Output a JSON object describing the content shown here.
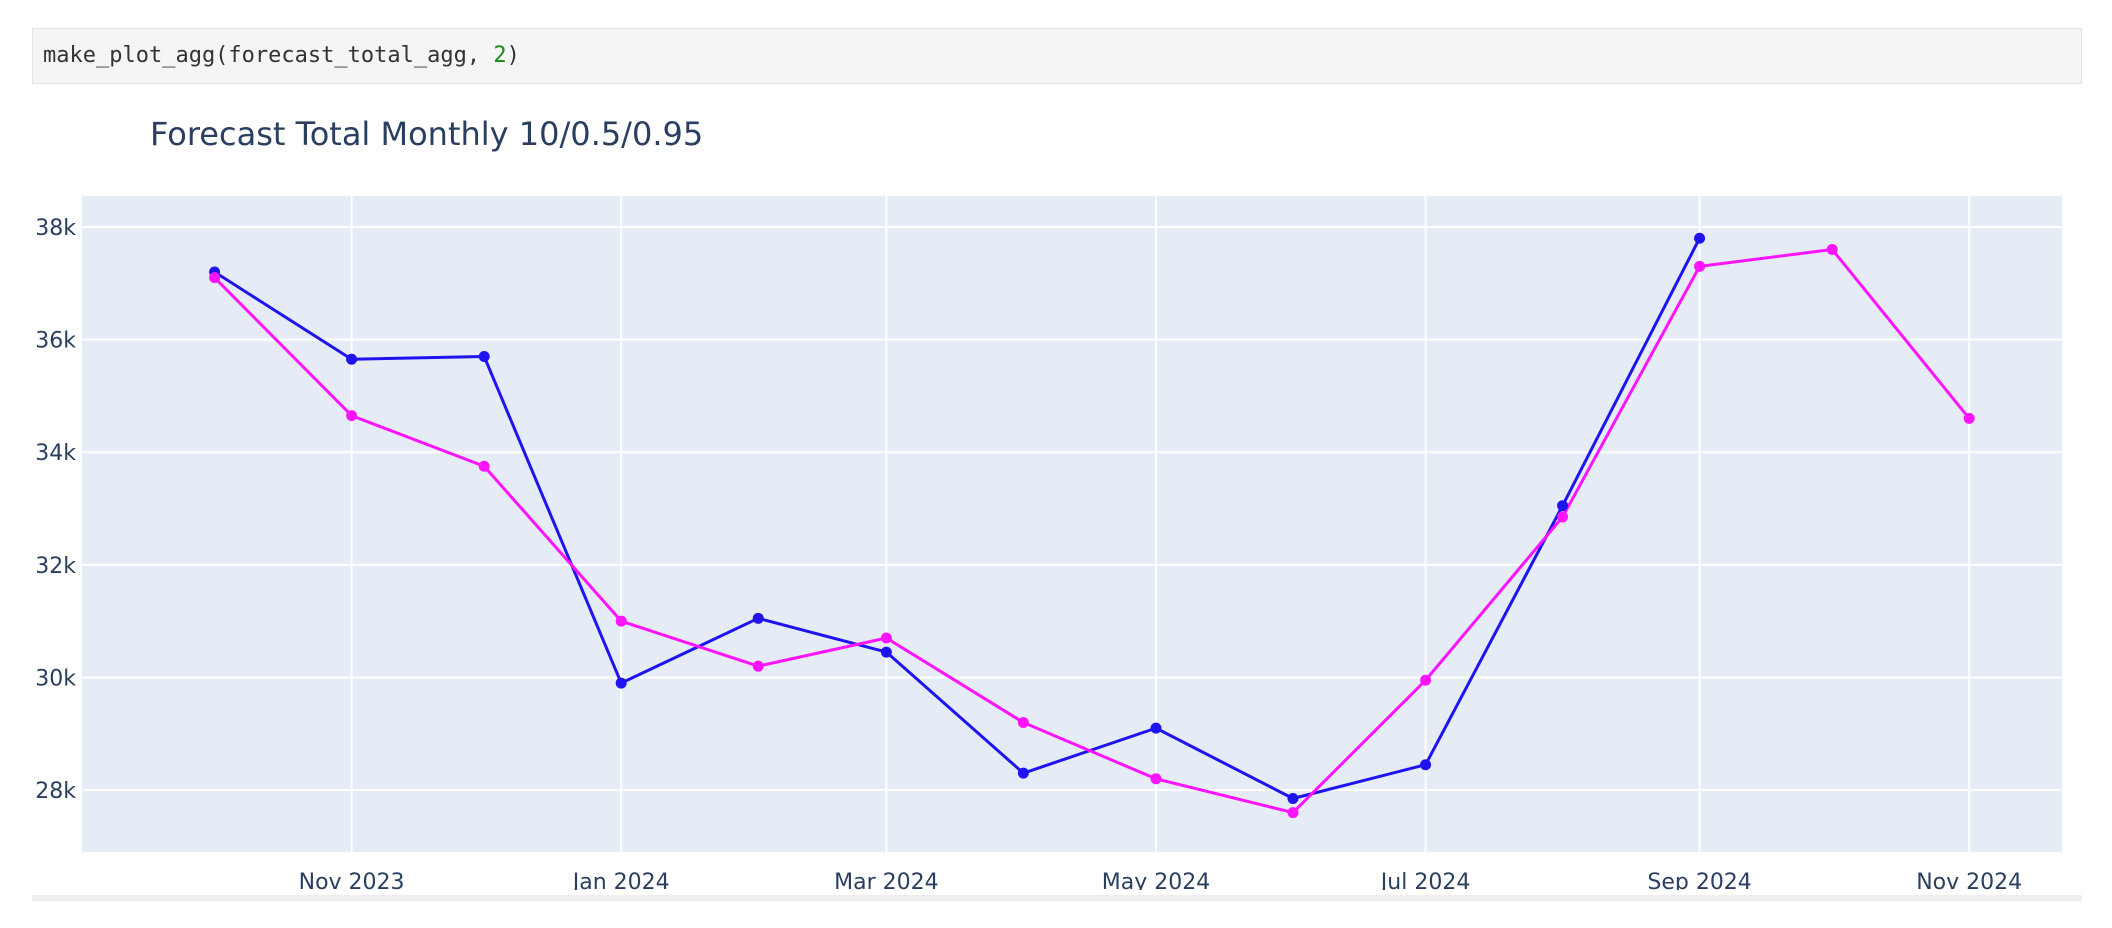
{
  "cell": {
    "code_prefix": "make_plot_agg(forecast_total_agg, ",
    "code_number": "2",
    "code_suffix": ")"
  },
  "chart_data": {
    "type": "line",
    "title": "Forecast Total Monthly 10/0.5/0.95",
    "xlabel": "",
    "ylabel": "",
    "x": [
      "2023-10-01",
      "2023-11-01",
      "2023-12-01",
      "2024-01-01",
      "2024-02-01",
      "2024-03-01",
      "2024-04-01",
      "2024-05-01",
      "2024-06-01",
      "2024-07-01",
      "2024-08-01",
      "2024-09-01",
      "2024-10-01",
      "2024-11-01"
    ],
    "series": [
      {
        "color": "#1f14f0",
        "values": [
          37200,
          35650,
          35700,
          29900,
          31050,
          30450,
          28300,
          29100,
          27850,
          28450,
          33050,
          37800,
          null,
          null
        ]
      },
      {
        "color": "#ff14ff",
        "values": [
          37100,
          34650,
          33750,
          31000,
          30200,
          30700,
          29200,
          28200,
          27600,
          29950,
          32850,
          37300,
          37600,
          34600
        ]
      }
    ],
    "ylim": [
      26900,
      38550
    ],
    "xlim": [
      "2023-09-01",
      "2024-11-22"
    ],
    "yticks": [
      28000,
      30000,
      32000,
      34000,
      36000,
      38000
    ],
    "ytick_labels": [
      "28k",
      "30k",
      "32k",
      "34k",
      "36k",
      "38k"
    ],
    "xticks": [
      "2023-11-01",
      "2024-01-01",
      "2024-03-01",
      "2024-05-01",
      "2024-07-01",
      "2024-09-01",
      "2024-11-01"
    ],
    "xtick_labels": [
      "Nov 2023",
      "Jan 2024",
      "Mar 2024",
      "May 2024",
      "Jul 2024",
      "Sep 2024",
      "Nov 2024"
    ],
    "grid": true,
    "background": "#e5ecf6"
  }
}
